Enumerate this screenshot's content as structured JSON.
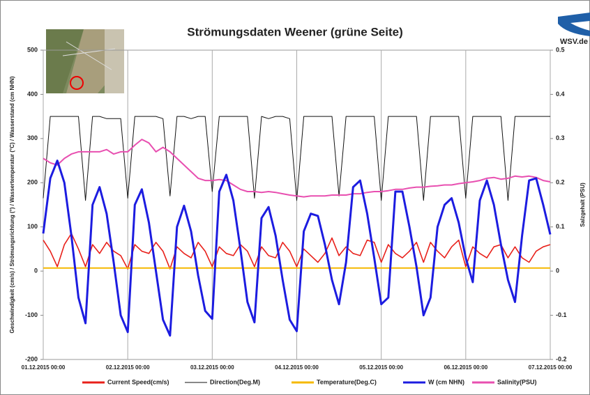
{
  "chart_data": {
    "type": "line",
    "title": "Strömungsdaten Weener (grüne Seite)",
    "y_label": "Geschwindigkeit (cm/s) / Strömungsrichtung (°) / Wassertemperatur (°C) / Wasserstand (cm NHN)",
    "y2_label": "Salzgehalt (PSU)",
    "logo": "WSV.de",
    "x": [
      "2015-12-01 00:00",
      "2015-12-01 02:00",
      "2015-12-01 04:00",
      "2015-12-01 06:00",
      "2015-12-01 08:00",
      "2015-12-01 10:00",
      "2015-12-01 12:00",
      "2015-12-01 14:00",
      "2015-12-01 16:00",
      "2015-12-01 18:00",
      "2015-12-01 20:00",
      "2015-12-01 22:00",
      "2015-12-02 00:00",
      "2015-12-02 02:00",
      "2015-12-02 04:00",
      "2015-12-02 06:00",
      "2015-12-02 08:00",
      "2015-12-02 10:00",
      "2015-12-02 12:00",
      "2015-12-02 14:00",
      "2015-12-02 16:00",
      "2015-12-02 18:00",
      "2015-12-02 20:00",
      "2015-12-02 22:00",
      "2015-12-03 00:00",
      "2015-12-03 02:00",
      "2015-12-03 04:00",
      "2015-12-03 06:00",
      "2015-12-03 08:00",
      "2015-12-03 10:00",
      "2015-12-03 12:00",
      "2015-12-03 14:00",
      "2015-12-03 16:00",
      "2015-12-03 18:00",
      "2015-12-03 20:00",
      "2015-12-03 22:00",
      "2015-12-04 00:00",
      "2015-12-04 02:00",
      "2015-12-04 04:00",
      "2015-12-04 06:00",
      "2015-12-04 08:00",
      "2015-12-04 10:00",
      "2015-12-04 12:00",
      "2015-12-04 14:00",
      "2015-12-04 16:00",
      "2015-12-04 18:00",
      "2015-12-04 20:00",
      "2015-12-04 22:00",
      "2015-12-05 00:00",
      "2015-12-05 02:00",
      "2015-12-05 04:00",
      "2015-12-05 06:00",
      "2015-12-05 08:00",
      "2015-12-05 10:00",
      "2015-12-05 12:00",
      "2015-12-05 14:00",
      "2015-12-05 16:00",
      "2015-12-05 18:00",
      "2015-12-05 20:00",
      "2015-12-05 22:00",
      "2015-12-06 00:00",
      "2015-12-06 02:00",
      "2015-12-06 04:00",
      "2015-12-06 06:00",
      "2015-12-06 08:00",
      "2015-12-06 10:00",
      "2015-12-06 12:00",
      "2015-12-06 14:00",
      "2015-12-06 16:00",
      "2015-12-06 18:00",
      "2015-12-06 20:00",
      "2015-12-06 22:00",
      "2015-12-07 00:00"
    ],
    "xlim": [
      "2015-12-01 00:00",
      "2015-12-07 00:00"
    ],
    "xticks": [
      {
        "value": "2015-12-01 00:00",
        "label": "01.12.2015 00:00"
      },
      {
        "value": "2015-12-02 00:00",
        "label": "02.12.2015 00:00"
      },
      {
        "value": "2015-12-03 00:00",
        "label": "03.12.2015 00:00"
      },
      {
        "value": "2015-12-04 00:00",
        "label": "04.12.2015 00:00"
      },
      {
        "value": "2015-12-05 00:00",
        "label": "05.12.2015 00:00"
      },
      {
        "value": "2015-12-06 00:00",
        "label": "06.12.2015 00:00"
      },
      {
        "value": "2015-12-07 00:00",
        "label": "07.12.2015 00:00"
      }
    ],
    "ylim": [
      -200,
      500
    ],
    "yticks": [
      -200,
      -100,
      0,
      100,
      200,
      300,
      400,
      500
    ],
    "y2lim": [
      -0.2,
      0.5
    ],
    "y2ticks": [
      -0.2,
      -0.1,
      0,
      0.1,
      0.2,
      0.3,
      0.4,
      0.5
    ],
    "grid": "x",
    "series": [
      {
        "name": "Current Speed(cm/s)",
        "color": "#e8201a",
        "values": [
          70,
          45,
          10,
          60,
          85,
          50,
          10,
          60,
          40,
          65,
          45,
          35,
          5,
          60,
          45,
          40,
          65,
          45,
          5,
          55,
          40,
          30,
          65,
          45,
          10,
          55,
          40,
          35,
          60,
          45,
          10,
          55,
          35,
          30,
          65,
          45,
          10,
          50,
          35,
          20,
          40,
          75,
          35,
          55,
          40,
          35,
          70,
          65,
          20,
          60,
          40,
          30,
          45,
          65,
          20,
          65,
          45,
          30,
          55,
          70,
          10,
          55,
          40,
          30,
          55,
          60,
          30,
          55,
          30,
          20,
          45,
          55,
          60
        ]
      },
      {
        "name": "Direction(Deg.M)",
        "color": "#111111",
        "values": [
          165,
          350,
          350,
          350,
          350,
          350,
          160,
          350,
          350,
          345,
          345,
          345,
          165,
          350,
          350,
          350,
          350,
          345,
          170,
          350,
          350,
          345,
          350,
          350,
          180,
          350,
          350,
          350,
          350,
          350,
          165,
          350,
          345,
          350,
          350,
          345,
          160,
          350,
          350,
          350,
          350,
          350,
          170,
          350,
          350,
          350,
          350,
          350,
          160,
          350,
          350,
          350,
          350,
          350,
          160,
          350,
          350,
          350,
          350,
          350,
          165,
          350,
          350,
          350,
          350,
          350,
          160,
          350,
          350,
          350,
          350,
          350,
          350
        ]
      },
      {
        "name": "Temperature(Deg.C)",
        "color": "#f5b800",
        "values": [
          7,
          7,
          7,
          7,
          7,
          7,
          7,
          7,
          7,
          7,
          7,
          7,
          7,
          7,
          7,
          7,
          7,
          7,
          7,
          7,
          7,
          7,
          7,
          7,
          7,
          7,
          7,
          7,
          7,
          7,
          7,
          7,
          7,
          7,
          7,
          7,
          7,
          7,
          7,
          7,
          7,
          7,
          7,
          7,
          7,
          7,
          7,
          7,
          7,
          7,
          7,
          7,
          7,
          7,
          7,
          7,
          7,
          7,
          7,
          7,
          7,
          7,
          7,
          7,
          7,
          7,
          7,
          7,
          7,
          7,
          7,
          7,
          7
        ]
      },
      {
        "name": "W (cm NHN)",
        "color": "#1c1ce0",
        "values": [
          85,
          210,
          250,
          200,
          80,
          -60,
          -118,
          150,
          190,
          130,
          20,
          -100,
          -138,
          150,
          185,
          110,
          0,
          -110,
          -146,
          100,
          148,
          90,
          -10,
          -90,
          -108,
          180,
          218,
          160,
          50,
          -70,
          -116,
          120,
          145,
          80,
          -20,
          -110,
          -136,
          90,
          130,
          125,
          60,
          -20,
          -75,
          20,
          190,
          205,
          130,
          30,
          -75,
          -60,
          180,
          180,
          100,
          10,
          -100,
          -60,
          100,
          150,
          165,
          110,
          30,
          -25,
          160,
          205,
          150,
          60,
          -20,
          -70,
          80,
          205,
          210,
          150,
          83
        ]
      },
      {
        "name": "Salinity(PSU)",
        "color": "#e84fb0",
        "axis": "y2",
        "values": [
          0.255,
          0.245,
          0.24,
          0.255,
          0.265,
          0.27,
          0.27,
          0.27,
          0.27,
          0.275,
          0.265,
          0.27,
          0.27,
          0.285,
          0.298,
          0.29,
          0.27,
          0.28,
          0.27,
          0.255,
          0.24,
          0.225,
          0.21,
          0.205,
          0.205,
          0.207,
          0.205,
          0.195,
          0.185,
          0.18,
          0.18,
          0.178,
          0.18,
          0.178,
          0.175,
          0.172,
          0.17,
          0.168,
          0.17,
          0.17,
          0.17,
          0.172,
          0.172,
          0.172,
          0.175,
          0.175,
          0.178,
          0.18,
          0.18,
          0.182,
          0.185,
          0.185,
          0.188,
          0.19,
          0.19,
          0.192,
          0.193,
          0.195,
          0.195,
          0.198,
          0.2,
          0.202,
          0.205,
          0.21,
          0.212,
          0.208,
          0.21,
          0.215,
          0.213,
          0.215,
          0.212,
          0.205,
          0.202
        ]
      }
    ]
  }
}
